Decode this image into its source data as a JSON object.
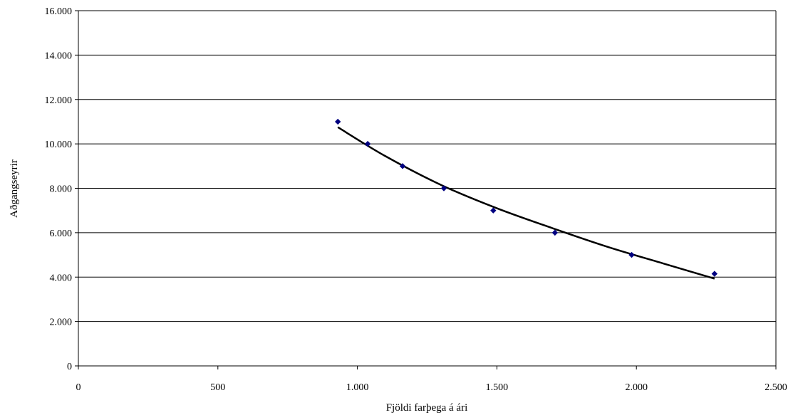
{
  "chart_data": {
    "type": "scatter",
    "xlabel": "Fjöldi farþega á ári",
    "ylabel": "Aðgangseyrir",
    "xlim": [
      0,
      2500
    ],
    "ylim": [
      0,
      16000
    ],
    "x_ticks": [
      {
        "value": 0,
        "label": "0"
      },
      {
        "value": 500,
        "label": "500"
      },
      {
        "value": 1000,
        "label": "1.000"
      },
      {
        "value": 1500,
        "label": "1.500"
      },
      {
        "value": 2000,
        "label": "2.000"
      },
      {
        "value": 2500,
        "label": "2.500"
      }
    ],
    "y_ticks": [
      {
        "value": 0,
        "label": "0"
      },
      {
        "value": 2000,
        "label": "2.000"
      },
      {
        "value": 4000,
        "label": "4.000"
      },
      {
        "value": 6000,
        "label": "6.000"
      },
      {
        "value": 8000,
        "label": "8.000"
      },
      {
        "value": 10000,
        "label": "10.000"
      },
      {
        "value": 12000,
        "label": "12.000"
      },
      {
        "value": 14000,
        "label": "14.000"
      },
      {
        "value": 16000,
        "label": "16.000"
      }
    ],
    "grid": "horizontal",
    "legend": "none",
    "points": [
      {
        "x": 930,
        "y": 11000
      },
      {
        "x": 1037,
        "y": 10000
      },
      {
        "x": 1162,
        "y": 9000
      },
      {
        "x": 1310,
        "y": 8000
      },
      {
        "x": 1487,
        "y": 7000
      },
      {
        "x": 1708,
        "y": 6000
      },
      {
        "x": 1983,
        "y": 5000
      },
      {
        "x": 2280,
        "y": 4150
      }
    ],
    "trendline": [
      {
        "x": 930,
        "y": 10750
      },
      {
        "x": 1100,
        "y": 9450
      },
      {
        "x": 1300,
        "y": 8150
      },
      {
        "x": 1500,
        "y": 7100
      },
      {
        "x": 1700,
        "y": 6200
      },
      {
        "x": 1900,
        "y": 5350
      },
      {
        "x": 2100,
        "y": 4600
      },
      {
        "x": 2280,
        "y": 3930
      }
    ],
    "colors": {
      "marker": "#000080",
      "trendline": "#000000",
      "grid": "#000000"
    }
  }
}
